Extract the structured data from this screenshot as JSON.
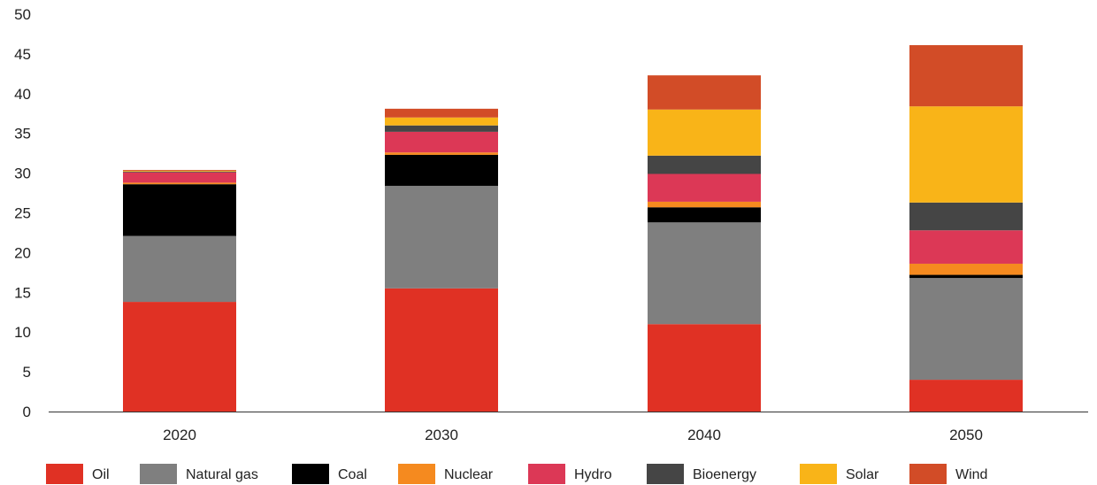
{
  "chart_data": {
    "type": "bar",
    "stacked": true,
    "title": "",
    "xlabel": "",
    "ylabel": "",
    "categories": [
      "2020",
      "2030",
      "2040",
      "2050"
    ],
    "ylim": [
      0,
      50
    ],
    "yticks": [
      0,
      5,
      10,
      15,
      20,
      25,
      30,
      35,
      40,
      45,
      50
    ],
    "grid": false,
    "legend_position": "bottom",
    "series": [
      {
        "name": "Oil",
        "color": "#e03124",
        "values": [
          13.8,
          15.5,
          11.0,
          4.0
        ]
      },
      {
        "name": "Natural gas",
        "color": "#7f7f7f",
        "values": [
          8.3,
          12.9,
          12.8,
          12.8
        ]
      },
      {
        "name": "Coal",
        "color": "#000000",
        "values": [
          6.5,
          3.9,
          1.9,
          0.4
        ]
      },
      {
        "name": "Nuclear",
        "color": "#f58a1f",
        "values": [
          0.2,
          0.3,
          0.7,
          1.4
        ]
      },
      {
        "name": "Hydro",
        "color": "#dc3856",
        "values": [
          1.3,
          2.6,
          3.5,
          4.2
        ]
      },
      {
        "name": "Bioenergy",
        "color": "#454545",
        "values": [
          0.1,
          0.8,
          2.3,
          3.5
        ]
      },
      {
        "name": "Solar",
        "color": "#f9b418",
        "values": [
          0.1,
          1.0,
          5.8,
          12.1
        ]
      },
      {
        "name": "Wind",
        "color": "#d24c27",
        "values": [
          0.1,
          1.1,
          4.3,
          7.7
        ]
      }
    ]
  }
}
